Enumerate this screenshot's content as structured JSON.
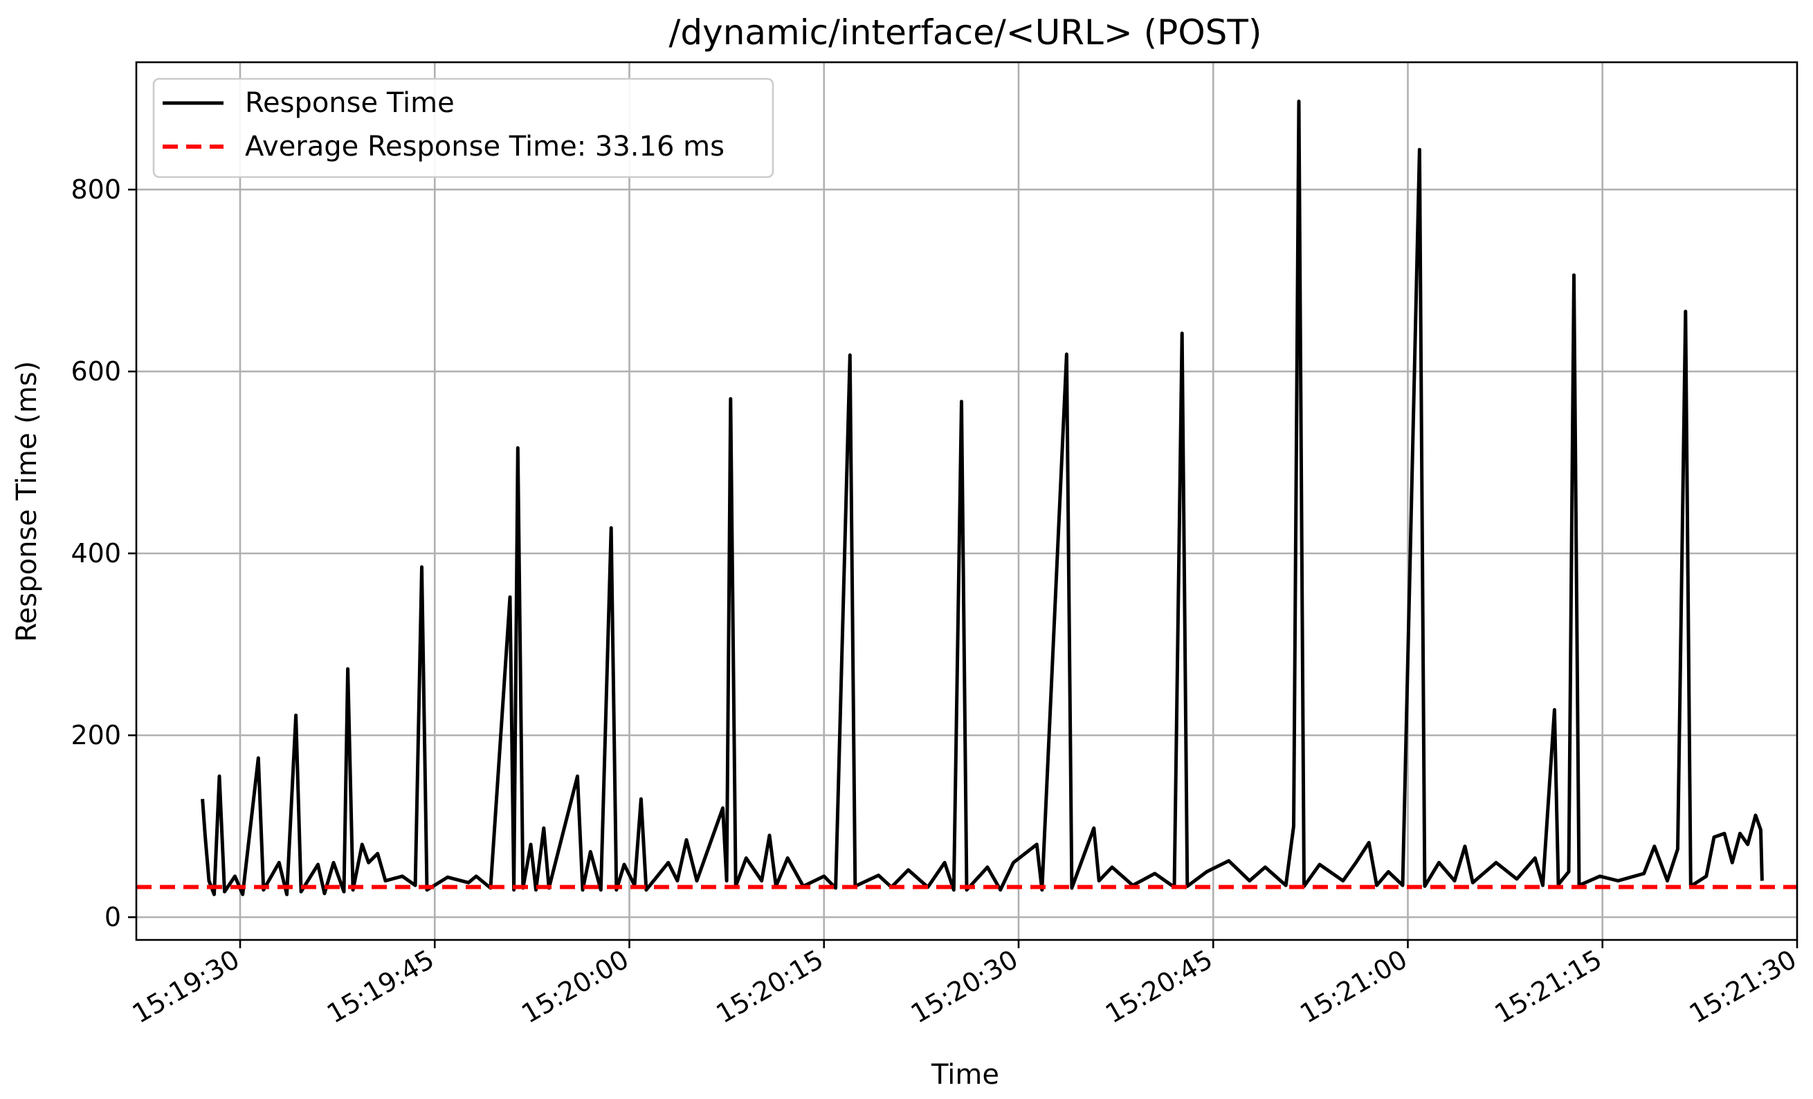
{
  "chart_data": {
    "type": "line",
    "title": "/dynamic/interface/<URL> (POST)",
    "xlabel": "Time",
    "ylabel": "Response Time (ms)",
    "x_axis": "time",
    "xlim": [
      "15:19:22",
      "15:21:30"
    ],
    "ylim": [
      -25,
      940
    ],
    "x_ticks": [
      "15:19:30",
      "15:19:45",
      "15:20:00",
      "15:20:15",
      "15:20:30",
      "15:20:45",
      "15:21:00",
      "15:21:15",
      "15:21:30"
    ],
    "y_ticks": [
      0,
      200,
      400,
      600,
      800
    ],
    "grid": true,
    "legend_position": "top-left",
    "series": [
      {
        "name": "Response Time",
        "color": "#000000",
        "style": "solid",
        "points": [
          [
            "15:19:27.1",
            130
          ],
          [
            "15:19:27.3",
            90
          ],
          [
            "15:19:27.6",
            40
          ],
          [
            "15:19:28.0",
            25
          ],
          [
            "15:19:28.4",
            155
          ],
          [
            "15:19:28.8",
            28
          ],
          [
            "15:19:29.6",
            45
          ],
          [
            "15:19:30.2",
            25
          ],
          [
            "15:19:31.4",
            175
          ],
          [
            "15:19:31.8",
            30
          ],
          [
            "15:19:33.0",
            60
          ],
          [
            "15:19:33.6",
            25
          ],
          [
            "15:19:34.3",
            222
          ],
          [
            "15:19:34.7",
            28
          ],
          [
            "15:19:36.0",
            58
          ],
          [
            "15:19:36.5",
            26
          ],
          [
            "15:19:37.2",
            60
          ],
          [
            "15:19:38.0",
            28
          ],
          [
            "15:19:38.3",
            273
          ],
          [
            "15:19:38.7",
            30
          ],
          [
            "15:19:39.4",
            80
          ],
          [
            "15:19:39.9",
            60
          ],
          [
            "15:19:40.6",
            70
          ],
          [
            "15:19:41.2",
            40
          ],
          [
            "15:19:42.5",
            45
          ],
          [
            "15:19:43.5",
            35
          ],
          [
            "15:19:44.0",
            385
          ],
          [
            "15:19:44.4",
            30
          ],
          [
            "15:19:46.0",
            44
          ],
          [
            "15:19:47.6",
            38
          ],
          [
            "15:19:48.2",
            45
          ],
          [
            "15:19:49.3",
            32
          ],
          [
            "15:19:50.8",
            352
          ],
          [
            "15:19:51.1",
            30
          ],
          [
            "15:19:51.4",
            516
          ],
          [
            "15:19:51.8",
            32
          ],
          [
            "15:19:52.4",
            80
          ],
          [
            "15:19:52.8",
            30
          ],
          [
            "15:19:53.4",
            98
          ],
          [
            "15:19:53.8",
            32
          ],
          [
            "15:19:56.0",
            155
          ],
          [
            "15:19:56.4",
            30
          ],
          [
            "15:19:57.0",
            72
          ],
          [
            "15:19:57.8",
            30
          ],
          [
            "15:19:58.6",
            428
          ],
          [
            "15:19:59.0",
            30
          ],
          [
            "15:19:59.6",
            58
          ],
          [
            "15:20:00.4",
            35
          ],
          [
            "15:20:00.9",
            130
          ],
          [
            "15:20:01.3",
            30
          ],
          [
            "15:20:03.0",
            60
          ],
          [
            "15:20:03.7",
            40
          ],
          [
            "15:20:04.4",
            85
          ],
          [
            "15:20:05.2",
            40
          ],
          [
            "15:20:07.2",
            120
          ],
          [
            "15:20:07.5",
            40
          ],
          [
            "15:20:07.8",
            570
          ],
          [
            "15:20:08.2",
            34
          ],
          [
            "15:20:09.0",
            65
          ],
          [
            "15:20:10.2",
            40
          ],
          [
            "15:20:10.8",
            90
          ],
          [
            "15:20:11.3",
            34
          ],
          [
            "15:20:12.2",
            65
          ],
          [
            "15:20:13.4",
            34
          ],
          [
            "15:20:15.0",
            45
          ],
          [
            "15:20:15.9",
            32
          ],
          [
            "15:20:17.0",
            618
          ],
          [
            "15:20:17.4",
            34
          ],
          [
            "15:20:19.2",
            46
          ],
          [
            "15:20:20.2",
            33
          ],
          [
            "15:20:21.5",
            52
          ],
          [
            "15:20:23.0",
            33
          ],
          [
            "15:20:24.3",
            60
          ],
          [
            "15:20:25.0",
            30
          ],
          [
            "15:20:25.6",
            567
          ],
          [
            "15:20:26.0",
            30
          ],
          [
            "15:20:27.6",
            55
          ],
          [
            "15:20:28.6",
            30
          ],
          [
            "15:20:29.6",
            60
          ],
          [
            "15:20:31.4",
            80
          ],
          [
            "15:20:31.8",
            30
          ],
          [
            "15:20:33.7",
            619
          ],
          [
            "15:20:34.1",
            32
          ],
          [
            "15:20:35.8",
            98
          ],
          [
            "15:20:36.2",
            40
          ],
          [
            "15:20:37.2",
            55
          ],
          [
            "15:20:38.8",
            35
          ],
          [
            "15:20:40.5",
            48
          ],
          [
            "15:20:42.0",
            33
          ],
          [
            "15:20:42.6",
            642
          ],
          [
            "15:20:43.0",
            34
          ],
          [
            "15:20:44.5",
            50
          ],
          [
            "15:20:46.2",
            62
          ],
          [
            "15:20:47.8",
            40
          ],
          [
            "15:20:49.0",
            55
          ],
          [
            "15:20:50.6",
            35
          ],
          [
            "15:20:51.2",
            100
          ],
          [
            "15:20:51.6",
            897
          ],
          [
            "15:20:52.0",
            34
          ],
          [
            "15:20:53.2",
            58
          ],
          [
            "15:20:55.0",
            40
          ],
          [
            "15:20:56.0",
            60
          ],
          [
            "15:20:57.0",
            82
          ],
          [
            "15:20:57.6",
            35
          ],
          [
            "15:20:58.5",
            50
          ],
          [
            "15:20:59.6",
            35
          ],
          [
            "15:21:00.9",
            844
          ],
          [
            "15:21:01.3",
            34
          ],
          [
            "15:21:02.4",
            60
          ],
          [
            "15:21:03.6",
            40
          ],
          [
            "15:21:04.4",
            78
          ],
          [
            "15:21:05.0",
            38
          ],
          [
            "15:21:06.8",
            60
          ],
          [
            "15:21:08.4",
            42
          ],
          [
            "15:21:09.8",
            65
          ],
          [
            "15:21:10.4",
            35
          ],
          [
            "15:21:11.3",
            228
          ],
          [
            "15:21:11.6",
            36
          ],
          [
            "15:21:12.4",
            50
          ],
          [
            "15:21:12.8",
            706
          ],
          [
            "15:21:13.2",
            35
          ],
          [
            "15:21:14.8",
            45
          ],
          [
            "15:21:16.2",
            40
          ],
          [
            "15:21:18.2",
            48
          ],
          [
            "15:21:19.0",
            78
          ],
          [
            "15:21:20.0",
            40
          ],
          [
            "15:21:20.8",
            75
          ],
          [
            "15:21:21.4",
            666
          ],
          [
            "15:21:21.8",
            34
          ],
          [
            "15:21:23.0",
            45
          ],
          [
            "15:21:23.6",
            88
          ],
          [
            "15:21:24.4",
            92
          ],
          [
            "15:21:25.0",
            60
          ],
          [
            "15:21:25.6",
            92
          ],
          [
            "15:21:26.2",
            80
          ],
          [
            "15:21:26.8",
            112
          ],
          [
            "15:21:27.2",
            96
          ],
          [
            "15:21:27.3",
            40
          ]
        ]
      },
      {
        "name": "Average Response Time: 33.16 ms",
        "color": "#ff0000",
        "style": "dashed",
        "value": 33.16
      }
    ]
  }
}
